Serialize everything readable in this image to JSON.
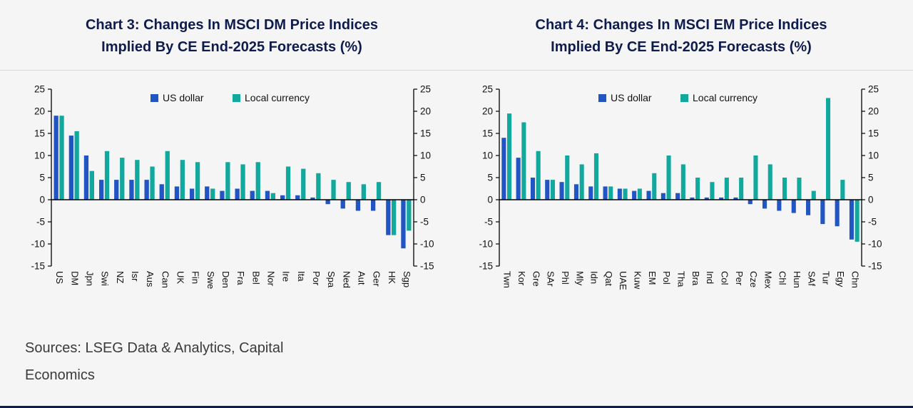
{
  "page": {
    "background": "#f5f5f6",
    "accent_navy": "#0e1b4d"
  },
  "footer": {
    "sources_line1": "Sources: LSEG Data & Analytics, Capital",
    "sources_line2": "Economics"
  },
  "chart_data": [
    {
      "type": "bar",
      "title": "Chart 3: Changes In MSCI DM Price Indices Implied By CE End-2025 Forecasts (%)",
      "title_line1": "Chart 3: Changes In MSCI DM Price Indices",
      "title_line2": "Implied By CE End-2025 Forecasts (%)",
      "xlabel": "",
      "ylabel": "",
      "ylim": [
        -15,
        25
      ],
      "ytick_step": 5,
      "grid": false,
      "legend_position": "top-center",
      "series_colors": [
        "#2255c4",
        "#13a89e"
      ],
      "categories": [
        "US",
        "DM",
        "Jpn",
        "Swi",
        "NZ",
        "Isr",
        "Aus",
        "Can",
        "UK",
        "Fin",
        "Swe",
        "Den",
        "Fra",
        "Bel",
        "Nor",
        "Ire",
        "Ita",
        "Por",
        "Spa",
        "Ned",
        "Aut",
        "Ger",
        "HK",
        "Sgp"
      ],
      "series": [
        {
          "name": "US dollar",
          "values": [
            19,
            14.5,
            10,
            4.5,
            4.5,
            4.5,
            4.5,
            3.5,
            3,
            2.5,
            3,
            2,
            2.5,
            2,
            2,
            1,
            1,
            0.5,
            -1,
            -2,
            -2.5,
            -2.5,
            -8,
            -11
          ]
        },
        {
          "name": "Local currency",
          "values": [
            19,
            15.5,
            6.5,
            11,
            9.5,
            9,
            7.5,
            11,
            9,
            8.5,
            2.5,
            8.5,
            8,
            8.5,
            1.5,
            7.5,
            7,
            6,
            4.5,
            4,
            3.5,
            4,
            -8,
            -7
          ]
        }
      ]
    },
    {
      "type": "bar",
      "title": "Chart 4: Changes In MSCI EM Price Indices Implied By CE End-2025 Forecasts (%)",
      "title_line1": "Chart 4: Changes In MSCI EM Price Indices",
      "title_line2": "Implied By CE End-2025 Forecasts (%)",
      "xlabel": "",
      "ylabel": "",
      "ylim": [
        -15,
        25
      ],
      "ytick_step": 5,
      "grid": false,
      "legend_position": "top-center",
      "series_colors": [
        "#2255c4",
        "#13a89e"
      ],
      "categories": [
        "Twn",
        "Kor",
        "Gre",
        "SAr",
        "Phl",
        "Mly",
        "Idn",
        "Qat",
        "UAE",
        "Kuw",
        "EM",
        "Pol",
        "Tha",
        "Bra",
        "Ind",
        "Col",
        "Per",
        "Cze",
        "Mex",
        "Chl",
        "Hun",
        "SAf",
        "Tur",
        "Egy",
        "Chn"
      ],
      "series": [
        {
          "name": "US dollar",
          "values": [
            14,
            9.5,
            5,
            4.5,
            4,
            3.5,
            3,
            3,
            2.5,
            2,
            2,
            1.5,
            1.5,
            0.5,
            0.5,
            0.5,
            0.5,
            -1,
            -2,
            -2.5,
            -3,
            -3.5,
            -5.5,
            -6,
            -9
          ]
        },
        {
          "name": "Local currency",
          "values": [
            19.5,
            17.5,
            11,
            4.5,
            10,
            8,
            10.5,
            3,
            2.5,
            2.5,
            6,
            10,
            8,
            5,
            4,
            5,
            5,
            10,
            8,
            5,
            5,
            2,
            23,
            4.5,
            -9.5
          ]
        }
      ]
    }
  ]
}
